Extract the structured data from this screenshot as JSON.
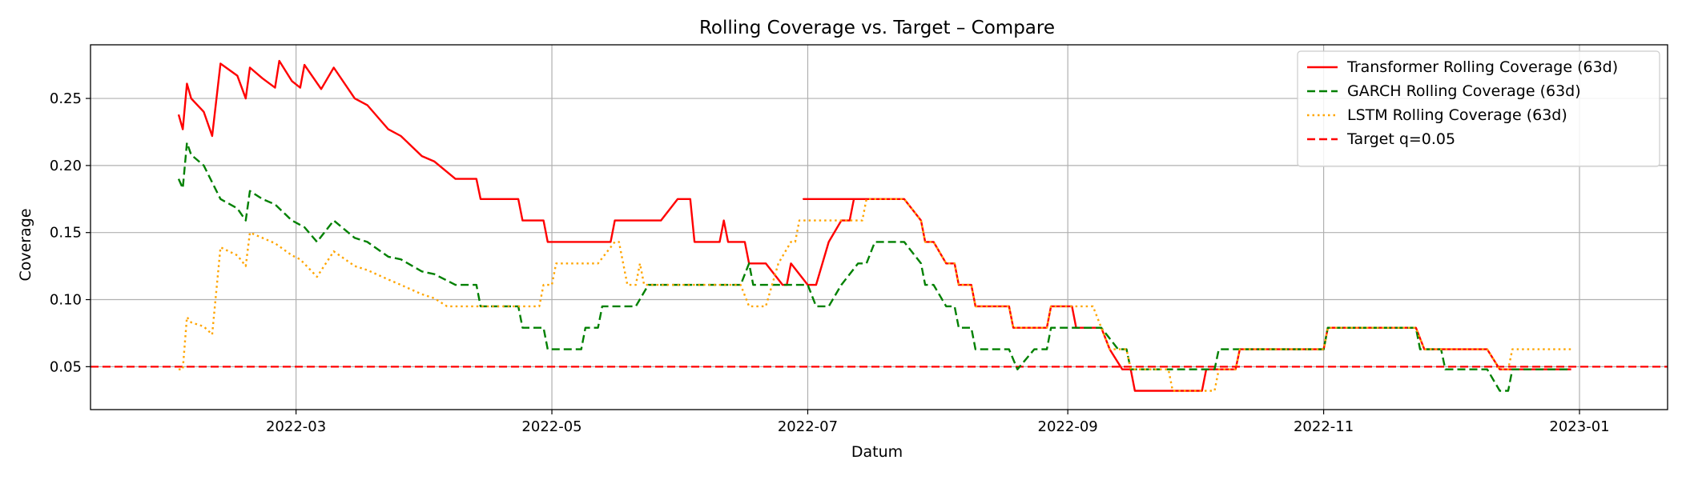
{
  "chart_data": {
    "type": "line",
    "title": "Rolling Coverage vs. Target – Compare",
    "xlabel": "Datum",
    "ylabel": "Coverage",
    "grid": true,
    "legend_position": "top-right",
    "xlim": [
      "2022-01-11",
      "2023-01-22"
    ],
    "ylim": [
      0.018,
      0.29
    ],
    "x_ticks": [
      "2022-03-01",
      "2022-05-01",
      "2022-07-01",
      "2022-09-01",
      "2022-11-01",
      "2023-01-01"
    ],
    "x_tick_labels": [
      "2022-03",
      "2022-05",
      "2022-07",
      "2022-09",
      "2022-11",
      "2023-01"
    ],
    "y_ticks": [
      0.05,
      0.1,
      0.15,
      0.2,
      0.25
    ],
    "y_tick_labels": [
      "0.05",
      "0.10",
      "0.15",
      "0.20",
      "0.25"
    ],
    "target": {
      "name": "Target q=0.05",
      "value": 0.05,
      "color": "#ff0000",
      "dash": "dashed"
    },
    "series": [
      {
        "name": "Transformer Rolling Coverage (63d)",
        "color": "#ff0000",
        "dash": "solid",
        "points": [
          [
            "2022-02-01",
            0.238
          ],
          [
            "2022-02-02",
            0.227
          ],
          [
            "2022-02-03",
            0.261
          ],
          [
            "2022-02-04",
            0.25
          ],
          [
            "2022-02-07",
            0.24
          ],
          [
            "2022-02-09",
            0.222
          ],
          [
            "2022-02-11",
            0.276
          ],
          [
            "2022-02-15",
            0.267
          ],
          [
            "2022-02-17",
            0.25
          ],
          [
            "2022-02-18",
            0.273
          ],
          [
            "2022-02-21",
            0.265
          ],
          [
            "2022-02-24",
            0.258
          ],
          [
            "2022-02-25",
            0.278
          ],
          [
            "2022-02-28",
            0.263
          ],
          [
            "2022-03-02",
            0.258
          ],
          [
            "2022-03-03",
            0.275
          ],
          [
            "2022-03-07",
            0.257
          ],
          [
            "2022-03-10",
            0.273
          ],
          [
            "2022-03-15",
            0.25
          ],
          [
            "2022-03-18",
            0.245
          ],
          [
            "2022-03-23",
            0.227
          ],
          [
            "2022-03-26",
            0.222
          ],
          [
            "2022-03-31",
            0.207
          ],
          [
            "2022-04-03",
            0.203
          ],
          [
            "2022-04-08",
            0.19
          ],
          [
            "2022-04-13",
            0.19
          ],
          [
            "2022-04-14",
            0.175
          ],
          [
            "2022-04-23",
            0.175
          ],
          [
            "2022-04-24",
            0.159
          ],
          [
            "2022-04-29",
            0.159
          ],
          [
            "2022-04-30",
            0.143
          ],
          [
            "2022-05-15",
            0.143
          ],
          [
            "2022-05-16",
            0.159
          ],
          [
            "2022-05-27",
            0.159
          ],
          [
            "2022-05-31",
            0.175
          ],
          [
            "2022-06-03",
            0.175
          ],
          [
            "2022-06-04",
            0.143
          ],
          [
            "2022-06-10",
            0.143
          ],
          [
            "2022-06-11",
            0.159
          ],
          [
            "2022-06-12",
            0.143
          ],
          [
            "2022-06-16",
            0.143
          ],
          [
            "2022-06-17",
            0.127
          ],
          [
            "2022-06-21",
            0.127
          ],
          [
            "2022-06-25",
            0.111
          ],
          [
            "2022-06-26",
            0.111
          ],
          [
            "2022-06-27",
            0.127
          ],
          [
            "2022-07-01",
            0.111
          ],
          [
            "2022-07-03",
            0.111
          ],
          [
            "2022-07-06",
            0.143
          ],
          [
            "2022-07-09",
            0.159
          ],
          [
            "2022-07-11",
            0.159
          ],
          [
            "2022-07-12",
            0.175
          ],
          [
            "2022-06-30",
            0.175
          ],
          [
            "2022-07-24",
            0.175
          ],
          [
            "2022-07-28",
            0.159
          ],
          [
            "2022-07-29",
            0.143
          ],
          [
            "2022-07-31",
            0.143
          ],
          [
            "2022-08-03",
            0.127
          ],
          [
            "2022-08-05",
            0.127
          ],
          [
            "2022-08-06",
            0.111
          ],
          [
            "2022-08-09",
            0.111
          ],
          [
            "2022-08-10",
            0.095
          ],
          [
            "2022-08-18",
            0.095
          ],
          [
            "2022-08-19",
            0.079
          ],
          [
            "2022-08-27",
            0.079
          ],
          [
            "2022-08-28",
            0.095
          ],
          [
            "2022-09-02",
            0.095
          ],
          [
            "2022-09-03",
            0.079
          ],
          [
            "2022-09-09",
            0.079
          ],
          [
            "2022-09-11",
            0.063
          ],
          [
            "2022-09-14",
            0.048
          ],
          [
            "2022-09-16",
            0.048
          ],
          [
            "2022-09-17",
            0.032
          ],
          [
            "2022-10-03",
            0.032
          ],
          [
            "2022-10-04",
            0.048
          ],
          [
            "2022-10-11",
            0.048
          ],
          [
            "2022-10-12",
            0.063
          ],
          [
            "2022-11-01",
            0.063
          ],
          [
            "2022-11-02",
            0.079
          ],
          [
            "2022-11-23",
            0.079
          ],
          [
            "2022-11-25",
            0.063
          ],
          [
            "2022-12-10",
            0.063
          ],
          [
            "2022-12-13",
            0.048
          ],
          [
            "2022-12-30",
            0.048
          ]
        ]
      },
      {
        "name": "GARCH Rolling Coverage (63d)",
        "color": "#008000",
        "dash": "dashed",
        "points": [
          [
            "2022-02-01",
            0.19
          ],
          [
            "2022-02-02",
            0.183
          ],
          [
            "2022-02-03",
            0.217
          ],
          [
            "2022-02-04",
            0.208
          ],
          [
            "2022-02-07",
            0.2
          ],
          [
            "2022-02-11",
            0.175
          ],
          [
            "2022-02-15",
            0.168
          ],
          [
            "2022-02-17",
            0.159
          ],
          [
            "2022-02-18",
            0.181
          ],
          [
            "2022-02-21",
            0.175
          ],
          [
            "2022-02-24",
            0.171
          ],
          [
            "2022-02-28",
            0.159
          ],
          [
            "2022-03-03",
            0.154
          ],
          [
            "2022-03-06",
            0.143
          ],
          [
            "2022-03-10",
            0.159
          ],
          [
            "2022-03-15",
            0.146
          ],
          [
            "2022-03-18",
            0.143
          ],
          [
            "2022-03-23",
            0.132
          ],
          [
            "2022-03-26",
            0.13
          ],
          [
            "2022-03-31",
            0.121
          ],
          [
            "2022-04-03",
            0.119
          ],
          [
            "2022-04-08",
            0.111
          ],
          [
            "2022-04-13",
            0.111
          ],
          [
            "2022-04-14",
            0.095
          ],
          [
            "2022-04-23",
            0.095
          ],
          [
            "2022-04-24",
            0.079
          ],
          [
            "2022-04-29",
            0.079
          ],
          [
            "2022-04-30",
            0.063
          ],
          [
            "2022-05-08",
            0.063
          ],
          [
            "2022-05-09",
            0.079
          ],
          [
            "2022-05-12",
            0.079
          ],
          [
            "2022-05-13",
            0.095
          ],
          [
            "2022-05-21",
            0.095
          ],
          [
            "2022-05-24",
            0.111
          ],
          [
            "2022-06-15",
            0.111
          ],
          [
            "2022-06-17",
            0.127
          ],
          [
            "2022-06-18",
            0.111
          ],
          [
            "2022-07-01",
            0.111
          ],
          [
            "2022-07-03",
            0.095
          ],
          [
            "2022-07-06",
            0.095
          ],
          [
            "2022-07-09",
            0.111
          ],
          [
            "2022-07-13",
            0.127
          ],
          [
            "2022-07-15",
            0.127
          ],
          [
            "2022-07-17",
            0.143
          ],
          [
            "2022-07-23",
            0.143
          ],
          [
            "2022-07-24",
            0.143
          ],
          [
            "2022-07-28",
            0.127
          ],
          [
            "2022-07-29",
            0.111
          ],
          [
            "2022-07-31",
            0.111
          ],
          [
            "2022-08-03",
            0.095
          ],
          [
            "2022-08-05",
            0.095
          ],
          [
            "2022-08-06",
            0.079
          ],
          [
            "2022-08-09",
            0.079
          ],
          [
            "2022-08-10",
            0.063
          ],
          [
            "2022-08-18",
            0.063
          ],
          [
            "2022-08-20",
            0.048
          ],
          [
            "2022-08-24",
            0.063
          ],
          [
            "2022-08-27",
            0.063
          ],
          [
            "2022-08-28",
            0.079
          ],
          [
            "2022-09-09",
            0.079
          ],
          [
            "2022-09-13",
            0.063
          ],
          [
            "2022-09-15",
            0.063
          ],
          [
            "2022-09-16",
            0.048
          ],
          [
            "2022-10-06",
            0.048
          ],
          [
            "2022-10-07",
            0.063
          ],
          [
            "2022-11-01",
            0.063
          ],
          [
            "2022-11-02",
            0.079
          ],
          [
            "2022-11-23",
            0.079
          ],
          [
            "2022-11-24",
            0.063
          ],
          [
            "2022-11-29",
            0.063
          ],
          [
            "2022-11-30",
            0.048
          ],
          [
            "2022-12-10",
            0.048
          ],
          [
            "2022-12-13",
            0.032
          ],
          [
            "2022-12-15",
            0.032
          ],
          [
            "2022-12-16",
            0.048
          ],
          [
            "2022-12-30",
            0.048
          ]
        ]
      },
      {
        "name": "LSTM Rolling Coverage (63d)",
        "color": "#ffa500",
        "dash": "dotted",
        "points": [
          [
            "2022-02-01",
            0.048
          ],
          [
            "2022-02-02",
            0.048
          ],
          [
            "2022-02-03",
            0.087
          ],
          [
            "2022-02-04",
            0.083
          ],
          [
            "2022-02-07",
            0.08
          ],
          [
            "2022-02-09",
            0.074
          ],
          [
            "2022-02-11",
            0.139
          ],
          [
            "2022-02-15",
            0.133
          ],
          [
            "2022-02-17",
            0.125
          ],
          [
            "2022-02-18",
            0.15
          ],
          [
            "2022-02-21",
            0.146
          ],
          [
            "2022-02-24",
            0.142
          ],
          [
            "2022-02-28",
            0.133
          ],
          [
            "2022-03-02",
            0.13
          ],
          [
            "2022-03-06",
            0.117
          ],
          [
            "2022-03-10",
            0.136
          ],
          [
            "2022-03-15",
            0.125
          ],
          [
            "2022-03-18",
            0.122
          ],
          [
            "2022-03-23",
            0.115
          ],
          [
            "2022-03-26",
            0.111
          ],
          [
            "2022-03-31",
            0.104
          ],
          [
            "2022-04-03",
            0.101
          ],
          [
            "2022-04-06",
            0.095
          ],
          [
            "2022-04-28",
            0.095
          ],
          [
            "2022-04-29",
            0.111
          ],
          [
            "2022-05-01",
            0.111
          ],
          [
            "2022-05-02",
            0.127
          ],
          [
            "2022-05-12",
            0.127
          ],
          [
            "2022-05-16",
            0.143
          ],
          [
            "2022-05-17",
            0.143
          ],
          [
            "2022-05-19",
            0.111
          ],
          [
            "2022-05-21",
            0.111
          ],
          [
            "2022-05-22",
            0.127
          ],
          [
            "2022-05-23",
            0.111
          ],
          [
            "2022-06-15",
            0.111
          ],
          [
            "2022-06-17",
            0.095
          ],
          [
            "2022-06-21",
            0.095
          ],
          [
            "2022-06-24",
            0.127
          ],
          [
            "2022-06-27",
            0.143
          ],
          [
            "2022-06-28",
            0.143
          ],
          [
            "2022-06-29",
            0.159
          ],
          [
            "2022-07-11",
            0.159
          ],
          [
            "2022-07-12",
            0.159
          ],
          [
            "2022-07-14",
            0.159
          ],
          [
            "2022-07-15",
            0.175
          ],
          [
            "2022-07-24",
            0.175
          ],
          [
            "2022-07-28",
            0.159
          ],
          [
            "2022-07-29",
            0.143
          ],
          [
            "2022-07-31",
            0.143
          ],
          [
            "2022-08-03",
            0.127
          ],
          [
            "2022-08-05",
            0.127
          ],
          [
            "2022-08-06",
            0.111
          ],
          [
            "2022-08-09",
            0.111
          ],
          [
            "2022-08-10",
            0.095
          ],
          [
            "2022-08-18",
            0.095
          ],
          [
            "2022-08-19",
            0.079
          ],
          [
            "2022-08-27",
            0.079
          ],
          [
            "2022-08-28",
            0.095
          ],
          [
            "2022-09-07",
            0.095
          ],
          [
            "2022-09-09",
            0.079
          ],
          [
            "2022-09-11",
            0.063
          ],
          [
            "2022-09-15",
            0.063
          ],
          [
            "2022-09-16",
            0.048
          ],
          [
            "2022-09-25",
            0.048
          ],
          [
            "2022-09-26",
            0.032
          ],
          [
            "2022-10-06",
            0.032
          ],
          [
            "2022-10-07",
            0.048
          ],
          [
            "2022-10-11",
            0.048
          ],
          [
            "2022-10-12",
            0.063
          ],
          [
            "2022-11-01",
            0.063
          ],
          [
            "2022-11-02",
            0.079
          ],
          [
            "2022-11-23",
            0.079
          ],
          [
            "2022-11-25",
            0.063
          ],
          [
            "2022-12-10",
            0.063
          ],
          [
            "2022-12-13",
            0.048
          ],
          [
            "2022-12-15",
            0.048
          ],
          [
            "2022-12-16",
            0.063
          ],
          [
            "2022-12-30",
            0.063
          ]
        ]
      }
    ]
  }
}
